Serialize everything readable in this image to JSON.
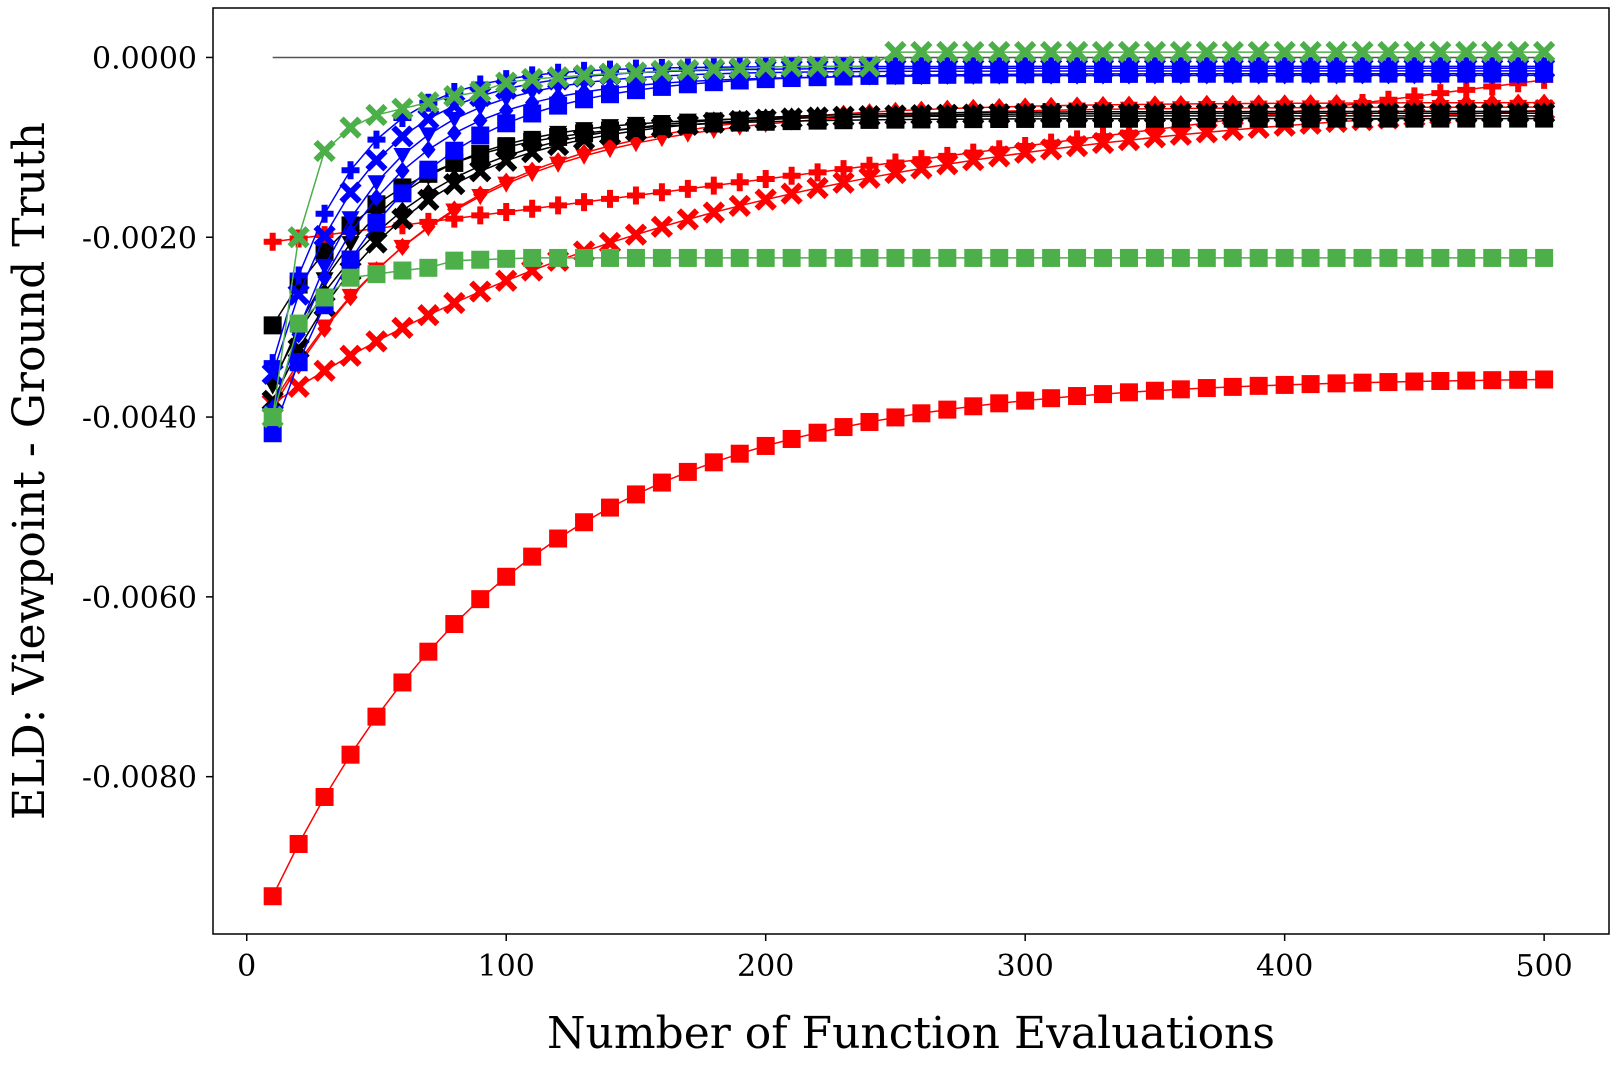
{
  "chart_data": {
    "type": "line",
    "title": "",
    "xlabel": "Number of Function Evaluations",
    "ylabel": "ELD: Viewpoint - Ground Truth",
    "xlim": [
      -13,
      525
    ],
    "ylim": [
      -0.00975,
      0.00055
    ],
    "x_ticks": [
      0,
      100,
      200,
      300,
      400,
      500
    ],
    "x_tick_labels": [
      "0",
      "100",
      "200",
      "300",
      "400",
      "500"
    ],
    "y_ticks": [
      0.0,
      -0.002,
      -0.004,
      -0.006,
      -0.008
    ],
    "y_tick_labels": [
      "0.0000",
      "-0.0020",
      "-0.0040",
      "-0.0060",
      "-0.0080"
    ],
    "grid": false,
    "legend": "none",
    "reference_line": {
      "y": 0.0,
      "x_start": 10,
      "x_end": 500,
      "color": "#555555"
    },
    "series": [
      {
        "color": "#ff0000",
        "marker": "square",
        "formula": {
          "kind": "exp",
          "a": -0.00355,
          "b": -0.00578,
          "c": 0.0106
        }
      },
      {
        "color": "#ff0000",
        "marker": "x",
        "formula": {
          "kind": "exp",
          "a": -0.00035,
          "b": -0.0035,
          "c": 0.0055
        }
      },
      {
        "color": "#ff0000",
        "marker": "plus",
        "formula": {
          "kind": "lin",
          "start": -0.00205,
          "end": -0.00025
        }
      },
      {
        "color": "#ff0000",
        "marker": "triangle-down",
        "formula": {
          "kind": "exp",
          "a": -0.00055,
          "b": -0.0033,
          "c": 0.015
        }
      },
      {
        "color": "#ff0000",
        "marker": "diamond",
        "formula": {
          "kind": "exp",
          "a": -0.0005,
          "b": -0.0034,
          "c": 0.015
        }
      },
      {
        "color": "#000000",
        "marker": "square",
        "formula": {
          "kind": "exp",
          "a": -0.00068,
          "b": -0.0023,
          "c": 0.022
        }
      },
      {
        "color": "#000000",
        "marker": "x",
        "formula": {
          "kind": "exp",
          "a": -0.00062,
          "b": -0.0032,
          "c": 0.02
        }
      },
      {
        "color": "#000000",
        "marker": "diamond",
        "formula": {
          "kind": "exp",
          "a": -0.0006,
          "b": -0.003,
          "c": 0.02
        }
      },
      {
        "color": "#000000",
        "marker": "triangle-down",
        "formula": {
          "kind": "exp",
          "a": -0.00065,
          "b": -0.003,
          "c": 0.025
        }
      },
      {
        "color": "#0000ff",
        "marker": "square",
        "formula": {
          "kind": "exp",
          "a": -0.00018,
          "b": -0.004,
          "c": 0.022
        }
      },
      {
        "color": "#0000ff",
        "marker": "plus",
        "formula": {
          "kind": "exp",
          "a": -0.0001,
          "b": -0.0033,
          "c": 0.035
        }
      },
      {
        "color": "#0000ff",
        "marker": "triangle-down",
        "formula": {
          "kind": "exp",
          "a": -0.00015,
          "b": -0.0038,
          "c": 0.028
        }
      },
      {
        "color": "#0000ff",
        "marker": "diamond",
        "formula": {
          "kind": "exp",
          "a": -0.0002,
          "b": -0.0037,
          "c": 0.025
        }
      },
      {
        "color": "#0000ff",
        "marker": "x",
        "formula": {
          "kind": "exp",
          "a": -0.00012,
          "b": -0.0034,
          "c": 0.03
        }
      },
      {
        "color": "#4daf4a",
        "marker": "square",
        "values": [
          -0.004,
          -0.00296,
          -0.00267,
          -0.00245,
          -0.00241,
          -0.00237,
          -0.00234,
          -0.00226,
          -0.00225,
          -0.00224,
          -0.00223,
          -0.00223,
          -0.00223,
          -0.00223,
          -0.00223,
          -0.00223,
          -0.00223,
          -0.00223,
          -0.00223,
          -0.00223,
          -0.00223,
          -0.00223,
          -0.00223,
          -0.00223,
          -0.00223,
          -0.00223,
          -0.00223,
          -0.00223,
          -0.00223,
          -0.00223,
          -0.00223,
          -0.00223,
          -0.00223,
          -0.00223,
          -0.00223,
          -0.00223,
          -0.00223,
          -0.00223,
          -0.00223,
          -0.00223,
          -0.00223,
          -0.00223,
          -0.00223,
          -0.00223,
          -0.00223,
          -0.00223,
          -0.00223,
          -0.00223,
          -0.00223,
          -0.00223
        ]
      },
      {
        "color": "#4daf4a",
        "marker": "x",
        "values": [
          -0.004,
          -0.002,
          -0.00104,
          -0.00078,
          -0.00064,
          -0.00057,
          -0.0005,
          -0.00043,
          -0.00038,
          -0.00028,
          -0.00024,
          -0.00022,
          -0.0002,
          -0.00018,
          -0.00017,
          -0.00015,
          -0.00014,
          -0.00013,
          -0.00012,
          -0.00011,
          -0.0001,
          -0.0001,
          -0.0001,
          -0.0001,
          6e-05,
          6e-05,
          6e-05,
          6e-05,
          6e-05,
          6e-05,
          6e-05,
          6e-05,
          6e-05,
          6e-05,
          6e-05,
          6e-05,
          6e-05,
          6e-05,
          6e-05,
          6e-05,
          6e-05,
          6e-05,
          6e-05,
          6e-05,
          6e-05,
          6e-05,
          6e-05,
          6e-05,
          6e-05,
          6e-05
        ]
      }
    ]
  }
}
